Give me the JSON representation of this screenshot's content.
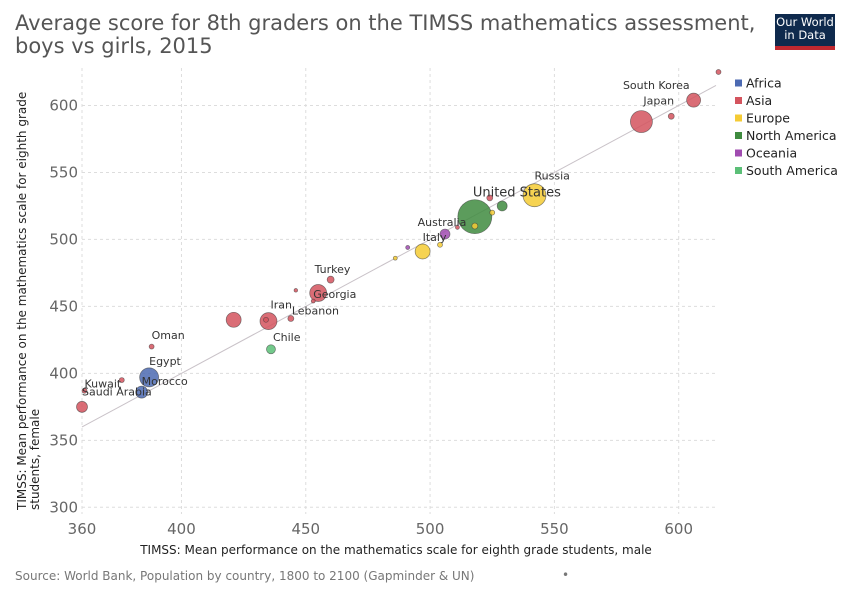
{
  "header": {
    "title": "Average score for 8th graders on the TIMSS mathematics assessment, boys vs girls, 2015",
    "logo_line1": "Our World",
    "logo_line2": "in Data"
  },
  "footer": {
    "source": "Source: World Bank, Population by country, 1800 to 2100 (Gapminder & UN)",
    "dot": "•"
  },
  "chart_data": {
    "type": "scatter",
    "title": "Average score for 8th graders on the TIMSS mathematics assessment, boys vs girls, 2015",
    "xlabel": "TIMSS: Mean performance on the mathematics scale for eighth grade students, male",
    "ylabel": "TIMSS: Mean performance on the mathematics scale for eighth grade students, female",
    "xlim": [
      360,
      615
    ],
    "ylim": [
      295,
      628
    ],
    "x_ticks": [
      360,
      400,
      450,
      500,
      550,
      600
    ],
    "y_ticks": [
      300,
      350,
      400,
      450,
      500,
      550,
      600
    ],
    "grid": true,
    "bubble_size": "population",
    "reference_line": "y = x",
    "legend": {
      "placement": "right",
      "entries": [
        {
          "name": "Africa",
          "color": "#4c6ab2"
        },
        {
          "name": "Asia",
          "color": "#d4545e"
        },
        {
          "name": "Europe",
          "color": "#f5cb34"
        },
        {
          "name": "North America",
          "color": "#3f8b3f"
        },
        {
          "name": "Oceania",
          "color": "#a04bb0"
        },
        {
          "name": "South America",
          "color": "#5bbf77"
        }
      ]
    },
    "points": [
      {
        "x": 616,
        "y": 625,
        "r": 2.5,
        "region": "Asia",
        "label": ""
      },
      {
        "x": 606,
        "y": 604,
        "r": 7,
        "region": "Asia",
        "label": "South Korea"
      },
      {
        "x": 585,
        "y": 588,
        "r": 11,
        "region": "Asia",
        "label": "Japan"
      },
      {
        "x": 597,
        "y": 592,
        "r": 3,
        "region": "Asia",
        "label": ""
      },
      {
        "x": 542,
        "y": 533,
        "r": 11.5,
        "region": "Europe",
        "label": "Russia"
      },
      {
        "x": 518,
        "y": 517,
        "r": 17,
        "region": "North America",
        "label": "United States"
      },
      {
        "x": 529,
        "y": 525,
        "r": 5,
        "region": "North America",
        "label": ""
      },
      {
        "x": 524,
        "y": 531,
        "r": 3,
        "region": "Asia",
        "label": ""
      },
      {
        "x": 525,
        "y": 520,
        "r": 2.5,
        "region": "Europe",
        "label": ""
      },
      {
        "x": 518,
        "y": 510,
        "r": 3,
        "region": "Europe",
        "label": ""
      },
      {
        "x": 511,
        "y": 509,
        "r": 2,
        "region": "Asia",
        "label": ""
      },
      {
        "x": 506,
        "y": 504,
        "r": 5,
        "region": "Oceania",
        "label": "Australia"
      },
      {
        "x": 504,
        "y": 496,
        "r": 2.5,
        "region": "Europe",
        "label": ""
      },
      {
        "x": 497,
        "y": 491,
        "r": 7.5,
        "region": "Europe",
        "label": "Italy"
      },
      {
        "x": 491,
        "y": 494,
        "r": 2,
        "region": "Oceania",
        "label": ""
      },
      {
        "x": 486,
        "y": 486,
        "r": 2,
        "region": "Europe",
        "label": ""
      },
      {
        "x": 460,
        "y": 470,
        "r": 3.5,
        "region": "Asia",
        "label": "Turkey"
      },
      {
        "x": 455,
        "y": 460,
        "r": 8.5,
        "region": "Asia",
        "label": ""
      },
      {
        "x": 453,
        "y": 454,
        "r": 2,
        "region": "Asia",
        "label": "Georgia"
      },
      {
        "x": 446,
        "y": 462,
        "r": 1.8,
        "region": "Asia",
        "label": ""
      },
      {
        "x": 421,
        "y": 440,
        "r": 7.5,
        "region": "Asia",
        "label": ""
      },
      {
        "x": 435,
        "y": 439,
        "r": 8.5,
        "region": "Asia",
        "label": "Iran"
      },
      {
        "x": 434,
        "y": 440,
        "r": 2.5,
        "region": "Asia",
        "label": ""
      },
      {
        "x": 444,
        "y": 441,
        "r": 3,
        "region": "Asia",
        "label": "Lebanon"
      },
      {
        "x": 436,
        "y": 418,
        "r": 4.5,
        "region": "South America",
        "label": "Chile"
      },
      {
        "x": 388,
        "y": 420,
        "r": 2.5,
        "region": "Asia",
        "label": "Oman"
      },
      {
        "x": 387,
        "y": 397,
        "r": 9.5,
        "region": "Africa",
        "label": "Egypt"
      },
      {
        "x": 384,
        "y": 386,
        "r": 6,
        "region": "Africa",
        "label": "Morocco"
      },
      {
        "x": 361,
        "y": 387,
        "r": 2.5,
        "region": "Asia",
        "label": "Kuwait"
      },
      {
        "x": 376,
        "y": 395,
        "r": 2.5,
        "region": "Asia",
        "label": ""
      },
      {
        "x": 360,
        "y": 375,
        "r": 5.5,
        "region": "Asia",
        "label": "Saudi Arabia"
      }
    ]
  }
}
